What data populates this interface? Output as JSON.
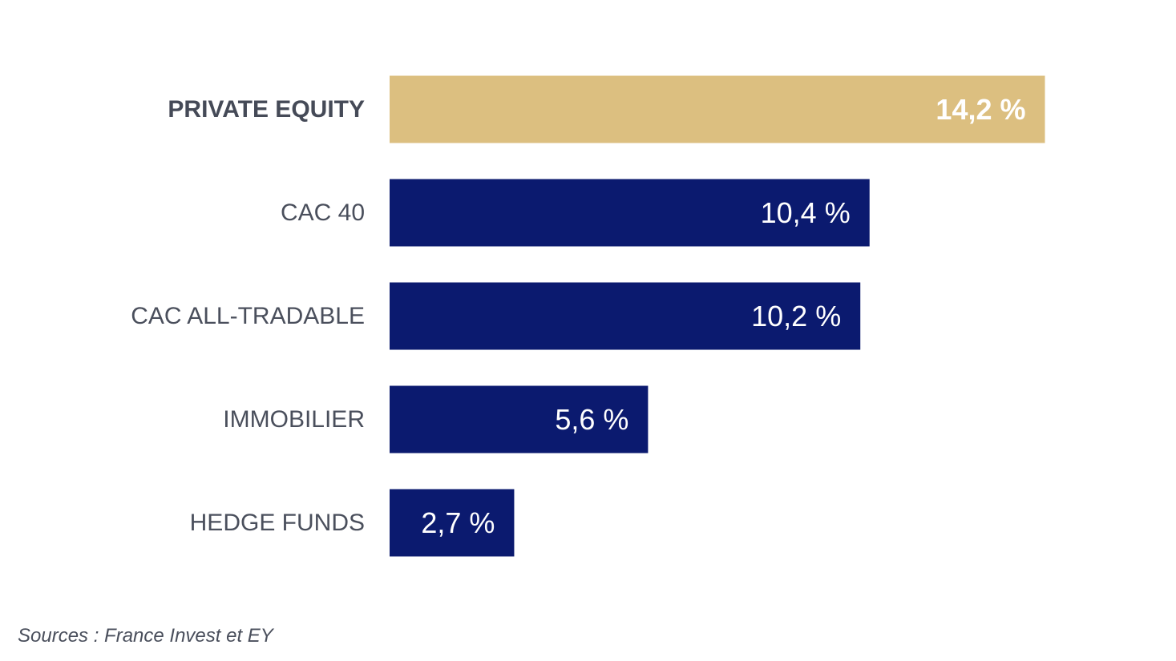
{
  "chart_data": {
    "type": "bar",
    "orientation": "horizontal",
    "categories": [
      "PRIVATE EQUITY",
      "CAC 40",
      "CAC ALL-TRADABLE",
      "IMMOBILIER",
      "HEDGE FUNDS"
    ],
    "values": [
      14.2,
      10.4,
      10.2,
      5.6,
      2.7
    ],
    "value_labels": [
      "14,2 %",
      "10,4 %",
      "10,2 %",
      "5,6 %",
      "2,7 %"
    ],
    "highlight_index": 0,
    "xlim": [
      0,
      14.2
    ],
    "grid": false,
    "colors": {
      "highlight": "#dcbf80",
      "default": "#0b1a6f",
      "value_text": "#ffffff",
      "category_text": "#4a4f5c"
    }
  },
  "footer": {
    "source": "Sources : France Invest et EY"
  }
}
